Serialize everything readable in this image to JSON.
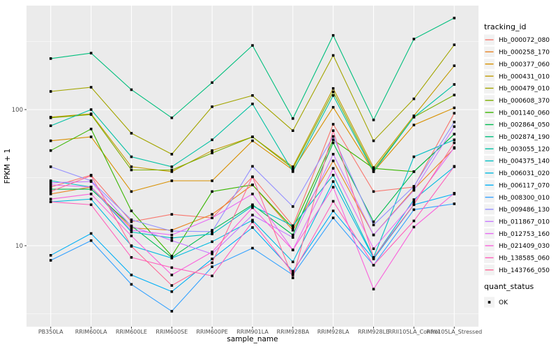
{
  "figure": {
    "y_axis": {
      "title": "FPKM + 1",
      "tick_labels": [
        "100",
        "10"
      ]
    },
    "x_axis": {
      "title": "sample_name"
    },
    "panel_bg": "#EBEBEB",
    "grid_color": "#FFFFFF",
    "marker_color": "#000000",
    "tick_label_color": "#4d4d4d"
  },
  "legend": {
    "tracking_title": "tracking_id",
    "quant_title": "quant_status",
    "quant_items": [
      {
        "label": "OK"
      }
    ],
    "key_bg": "#F2F2F2"
  },
  "chart_data": {
    "type": "line",
    "yscale": "log10",
    "ylabel": "FPKM + 1",
    "xlabel": "sample_name",
    "ylim": [
      2.5,
      580
    ],
    "yticks": [
      10,
      100
    ],
    "yminor": [
      3.162,
      31.62,
      316.2
    ],
    "grid": true,
    "legend_position": "right",
    "categories": [
      "PB350LA",
      "RRIM600LA",
      "RRIM600LE",
      "RRIM600SE",
      "RRIM600PE",
      "RRIM901LA",
      "RRIM928BA",
      "RRIM928LA",
      "RRIM928LE",
      "RRII105LA_Control",
      "RRII105LA_Stressed"
    ],
    "series": [
      {
        "name": "Hb_000072_080",
        "color": "#F8766D",
        "values": [
          27,
          33,
          15,
          17,
          16,
          32,
          14,
          78,
          25,
          27,
          94
        ]
      },
      {
        "name": "Hb_000258_170",
        "color": "#E88526",
        "values": [
          24,
          27,
          13.5,
          13,
          17,
          28,
          13,
          42,
          12,
          26,
          52
        ]
      },
      {
        "name": "Hb_000377_060",
        "color": "#D89000",
        "values": [
          59,
          63,
          25,
          30,
          30,
          59,
          36,
          104,
          35,
          77,
          103
        ]
      },
      {
        "name": "Hb_000431_010",
        "color": "#C09B00",
        "values": [
          88,
          93,
          38,
          35,
          50,
          63,
          38,
          143,
          37.5,
          90,
          210
        ]
      },
      {
        "name": "Hb_000479_010",
        "color": "#A3A500",
        "values": [
          136,
          146,
          67,
          47,
          105,
          127,
          70,
          250,
          59,
          120,
          299
        ]
      },
      {
        "name": "Hb_000608_370",
        "color": "#7CAE00",
        "values": [
          87,
          92,
          36,
          36,
          48,
          63,
          37,
          135,
          36,
          88,
          128
        ]
      },
      {
        "name": "Hb_001140_060",
        "color": "#39B600",
        "values": [
          50,
          72,
          18,
          8.4,
          25,
          28,
          13.5,
          60,
          37,
          35,
          66
        ]
      },
      {
        "name": "Hb_002864_050",
        "color": "#00BB4E",
        "values": [
          26,
          26,
          14,
          8.2,
          13,
          20,
          12,
          57,
          15,
          35,
          66
        ]
      },
      {
        "name": "Hb_002874_190",
        "color": "#00BF7D",
        "values": [
          237,
          260,
          140,
          87,
          158,
          296,
          86,
          351,
          84,
          330,
          471
        ]
      },
      {
        "name": "Hb_003055_120",
        "color": "#00C1A3",
        "values": [
          76,
          100,
          45,
          38,
          60,
          110,
          35,
          127,
          35,
          88,
          153
        ]
      },
      {
        "name": "Hb_004375_140",
        "color": "#00BFC4",
        "values": [
          30,
          27,
          12.6,
          11.4,
          12.2,
          19.6,
          14,
          33,
          8.2,
          45,
          60
        ]
      },
      {
        "name": "Hb_006031_020",
        "color": "#00BAE0",
        "values": [
          21,
          22,
          10,
          8.1,
          10.7,
          15.4,
          7.6,
          29.6,
          8.1,
          21.8,
          38
        ]
      },
      {
        "name": "Hb_006117_070",
        "color": "#00B0F6",
        "values": [
          8.5,
          12.3,
          6.1,
          4.6,
          8,
          13.6,
          6.5,
          18,
          8,
          20,
          24
        ]
      },
      {
        "name": "Hb_008300_010",
        "color": "#35A2FF",
        "values": [
          7.8,
          10.9,
          5.2,
          3.3,
          7,
          9.6,
          6.1,
          16,
          7.2,
          18.4,
          20.3
        ]
      },
      {
        "name": "Hb_009486_130",
        "color": "#9590FF",
        "values": [
          38,
          30,
          15.5,
          12.8,
          12.7,
          38.3,
          19.4,
          63.5,
          14.2,
          27.3,
          81
        ]
      },
      {
        "name": "Hb_011867_010",
        "color": "#C77CFF",
        "values": [
          29,
          29.6,
          13.9,
          10.9,
          8.7,
          16.8,
          11.5,
          47,
          12,
          25.5,
          75
        ]
      },
      {
        "name": "Hb_012753_160",
        "color": "#E76BF3",
        "values": [
          28,
          27,
          13,
          12,
          16,
          24,
          9.3,
          37,
          9.5,
          21,
          52.6
        ]
      },
      {
        "name": "Hb_021409_030",
        "color": "#FA62DB",
        "values": [
          22,
          24,
          11.8,
          6.1,
          9,
          19,
          9.3,
          26.9,
          4.8,
          13.7,
          24.3
        ]
      },
      {
        "name": "Hb_138585_060",
        "color": "#FF62BC",
        "values": [
          21,
          20,
          8.2,
          6.9,
          6,
          15,
          6.3,
          21.2,
          7.2,
          15.2,
          38.3
        ]
      },
      {
        "name": "Hb_143766_050",
        "color": "#FF6A98",
        "values": [
          25,
          32.7,
          9.9,
          5.1,
          7.5,
          32.1,
          5.8,
          70,
          8.2,
          20.1,
          57
        ]
      }
    ]
  }
}
